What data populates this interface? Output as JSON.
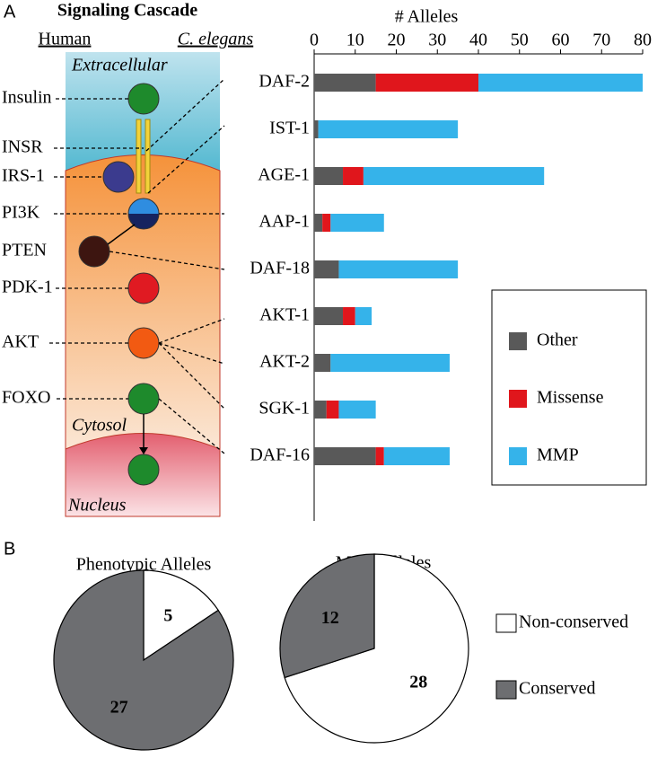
{
  "panel_labels": [
    "A",
    "B"
  ],
  "diagram": {
    "title": "Signaling Cascade",
    "headers": [
      "Human",
      "C. elegans"
    ],
    "compartments": [
      "Extracellular",
      "Cytosol",
      "Nucleus"
    ],
    "human": [
      "Insulin",
      "INSR",
      "IRS-1",
      "PI3K",
      "PTEN",
      "PDK-1",
      "AKT",
      "FOXO"
    ]
  },
  "chart_data": [
    {
      "type": "bar",
      "orientation": "horizontal",
      "stacked": true,
      "x_label": "# Alleles",
      "categories": [
        "DAF-2",
        "IST-1",
        "AGE-1",
        "AAP-1",
        "DAF-18",
        "AKT-1",
        "AKT-2",
        "SGK-1",
        "DAF-16"
      ],
      "series": [
        {
          "name": "Other",
          "color": "#595959",
          "values": [
            15,
            1,
            7,
            2,
            6,
            7,
            4,
            3,
            15
          ]
        },
        {
          "name": "Missense",
          "color": "#e0161c",
          "values": [
            25,
            0,
            5,
            2,
            0,
            3,
            0,
            3,
            2
          ]
        },
        {
          "name": "MMP",
          "color": "#35b3ea",
          "values": [
            40,
            34,
            44,
            13,
            29,
            4,
            29,
            9,
            16
          ]
        }
      ],
      "xlim": [
        0,
        80
      ],
      "xticks": [
        0,
        10,
        20,
        30,
        40,
        50,
        60,
        70,
        80
      ],
      "legend": "lower right"
    },
    {
      "type": "pie",
      "title": "Phenotypic Alleles",
      "values": [
        5,
        27
      ],
      "colors": [
        "#ffffff",
        "#6d6e71"
      ]
    },
    {
      "type": "pie",
      "title": "MMP Alleles",
      "values": [
        28,
        12
      ],
      "colors": [
        "#ffffff",
        "#6d6e71"
      ]
    }
  ],
  "pie_legend": {
    "labels": [
      "Non-conserved",
      "Conserved"
    ],
    "colors": [
      "#ffffff",
      "#6d6e71"
    ]
  }
}
